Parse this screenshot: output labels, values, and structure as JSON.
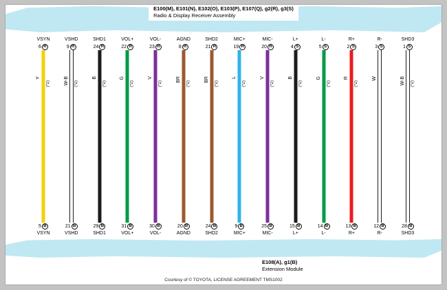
{
  "top_assembly": {
    "connectors": "E100(M), E101(N), E102(O), E103(P), E107(Q), g2(R), g3(S)",
    "name": "Radio & Display Receiver Assembly"
  },
  "bottom_assembly": {
    "connectors": "E108(A), g1(B)",
    "name": "Extension Module"
  },
  "footer": "Courtesy of © TOYOTA, LICENSE AGREEMENT TMS1002",
  "colors": {
    "band": "#bfe8f2",
    "yellow": "#f3d00b",
    "black": "#1c1c1c",
    "green": "#009b49",
    "violet": "#7c2f9e",
    "brown": "#9b5a2f",
    "light_blue": "#2fb4e9",
    "red": "#e91c23",
    "white": "#ffffff"
  },
  "wires": [
    {
      "signal": "VSYN",
      "top_pin": "6",
      "top_connector": "R",
      "bottom_pin": "5",
      "bottom_connector": "B",
      "code": "Y",
      "note": "(*2)",
      "color": "#f3d00b",
      "style": "solid"
    },
    {
      "signal": "VSHD",
      "top_pin": "9",
      "top_connector": "R",
      "bottom_pin": "21",
      "bottom_connector": "B",
      "code": "W-B",
      "note": "(*2)",
      "color": "#ffffff",
      "style": "outline"
    },
    {
      "signal": "SHD1",
      "top_pin": "24",
      "top_connector": "R",
      "bottom_pin": "29",
      "bottom_connector": "B",
      "code": "B",
      "note": "(*2)",
      "color": "#1c1c1c",
      "style": "solid"
    },
    {
      "signal": "VOL+",
      "top_pin": "22",
      "top_connector": "R",
      "bottom_pin": "31",
      "bottom_connector": "B",
      "code": "G",
      "note": "(*2)",
      "color": "#009b49",
      "style": "solid"
    },
    {
      "signal": "VOL-",
      "top_pin": "23",
      "top_connector": "R",
      "bottom_pin": "30",
      "bottom_connector": "B",
      "code": "V",
      "note": "(*2)",
      "color": "#7c2f9e",
      "style": "solid"
    },
    {
      "signal": "AGND",
      "top_pin": "8",
      "top_connector": "R",
      "bottom_pin": "20",
      "bottom_connector": "B",
      "code": "BR",
      "note": "(*2)",
      "color": "#9b5a2f",
      "style": "solid"
    },
    {
      "signal": "SHD2",
      "top_pin": "21",
      "top_connector": "R",
      "bottom_pin": "24",
      "bottom_connector": "B",
      "code": "BR",
      "note": "(*2)",
      "color": "#9b5a2f",
      "style": "solid"
    },
    {
      "signal": "MIC+",
      "top_pin": "19",
      "top_connector": "R",
      "bottom_pin": "9",
      "bottom_connector": "B",
      "code": "L",
      "note": "(*2)",
      "color": "#2fb4e9",
      "style": "solid"
    },
    {
      "signal": "MIC-",
      "top_pin": "20",
      "top_connector": "R",
      "bottom_pin": "25",
      "bottom_connector": "B",
      "code": "V",
      "note": "(*2)",
      "color": "#7c2f9e",
      "style": "solid"
    },
    {
      "signal": "L+",
      "top_pin": "4",
      "top_connector": "S",
      "bottom_pin": "15",
      "bottom_connector": "B",
      "code": "B",
      "note": "(*2)",
      "color": "#1c1c1c",
      "style": "solid"
    },
    {
      "signal": "L-",
      "top_pin": "5",
      "top_connector": "S",
      "bottom_pin": "14",
      "bottom_connector": "B",
      "code": "G",
      "note": "(*2)",
      "color": "#009b49",
      "style": "solid"
    },
    {
      "signal": "R+",
      "top_pin": "2",
      "top_connector": "S",
      "bottom_pin": "13",
      "bottom_connector": "B",
      "code": "R",
      "note": "(*2)",
      "color": "#e91c23",
      "style": "solid"
    },
    {
      "signal": "R-",
      "top_pin": "3",
      "top_connector": "S",
      "bottom_pin": "12",
      "bottom_connector": "B",
      "code": "W",
      "note": "",
      "color": "#ffffff",
      "style": "outline"
    },
    {
      "signal": "SHD3",
      "top_pin": "1",
      "top_connector": "S",
      "bottom_pin": "28",
      "bottom_connector": "B",
      "code": "W-B",
      "note": "(*2)",
      "color": "#ffffff",
      "style": "outline"
    }
  ]
}
